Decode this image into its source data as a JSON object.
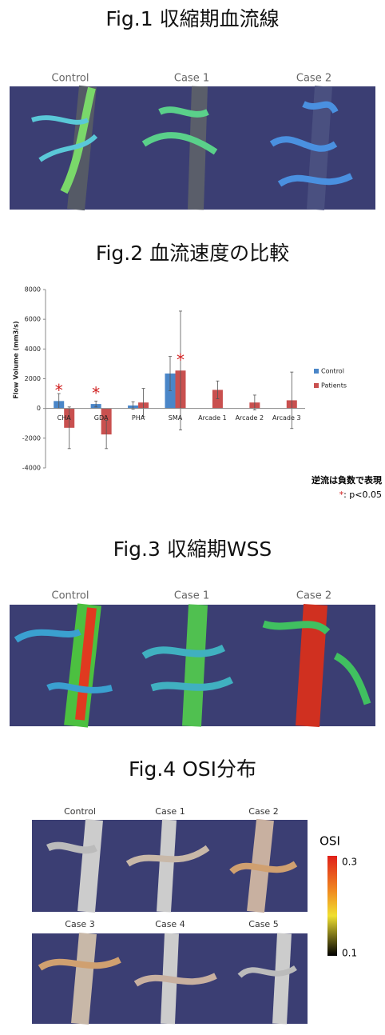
{
  "fig1": {
    "title": "Fig.1 収縮期血流線",
    "labels": [
      "Control",
      "Case 1",
      "Case 2"
    ]
  },
  "chart_data": {
    "type": "bar",
    "title": "Fig.2 血流速度の比較",
    "y_label": "Flow Volume (mm3/s)",
    "categories": [
      "CHA",
      "GDA",
      "PHA",
      "SMA",
      "Arcade 1",
      "Arcade 2",
      "Arcade 3"
    ],
    "series": [
      {
        "name": "Control",
        "color": "#4a86c8",
        "values": [
          500,
          300,
          200,
          2350,
          null,
          null,
          null
        ],
        "errors": [
          500,
          200,
          250,
          1150,
          null,
          null,
          null
        ]
      },
      {
        "name": "Patients",
        "color": "#c9504f",
        "values": [
          -1300,
          -1750,
          400,
          2550,
          1250,
          400,
          550
        ],
        "errors": [
          1400,
          950,
          950,
          4000,
          600,
          500,
          1900
        ]
      }
    ],
    "significance": [
      "*",
      "*",
      null,
      "*",
      null,
      null,
      null
    ],
    "ylim": [
      -4000,
      8000
    ],
    "yticks": [
      -4000,
      -2000,
      0,
      2000,
      4000,
      6000,
      8000
    ],
    "grid": false,
    "legend": "right",
    "note": "逆流は負数で表現",
    "note_star": "*",
    "note_text": ": p<0.05"
  },
  "fig3": {
    "title": "Fig.3 収縮期WSS",
    "labels": [
      "Control",
      "Case 1",
      "Case 2"
    ]
  },
  "fig4": {
    "title": "Fig.4 OSI分布",
    "labels_top": [
      "Control",
      "Case 1",
      "Case 2"
    ],
    "labels_bottom": [
      "Case 3",
      "Case 4",
      "Case 5"
    ],
    "colorbar_title": "OSI",
    "colorbar_max": "0.3",
    "colorbar_min": "0.1"
  }
}
